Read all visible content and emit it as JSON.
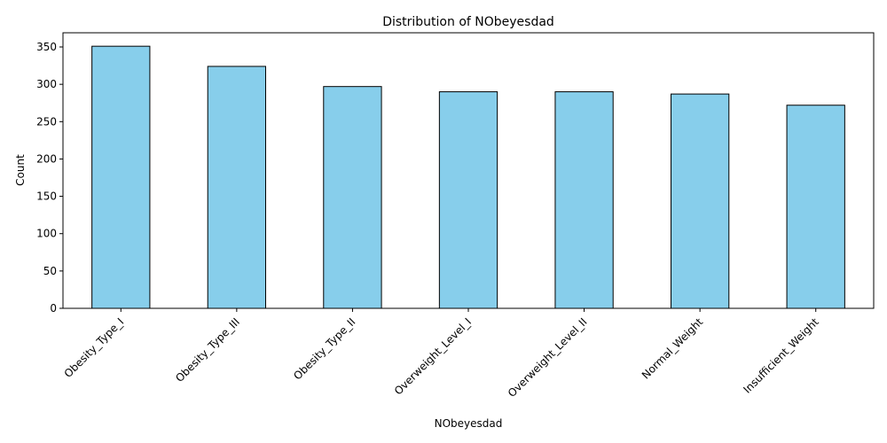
{
  "chart_data": {
    "type": "bar",
    "title": "Distribution of NObeyesdad",
    "xlabel": "NObeyesdad",
    "ylabel": "Count",
    "categories": [
      "Obesity_Type_I",
      "Obesity_Type_III",
      "Obesity_Type_II",
      "Overweight_Level_I",
      "Overweight_Level_II",
      "Normal_Weight",
      "Insufficient_Weight"
    ],
    "values": [
      351,
      324,
      297,
      290,
      290,
      287,
      272
    ],
    "ylim": [
      0,
      369
    ],
    "yticks": [
      0,
      50,
      100,
      150,
      200,
      250,
      300,
      350
    ],
    "bar_color": "#87CEEB",
    "edge_color": "#000000",
    "grid": false,
    "xtick_rotation": 45
  }
}
